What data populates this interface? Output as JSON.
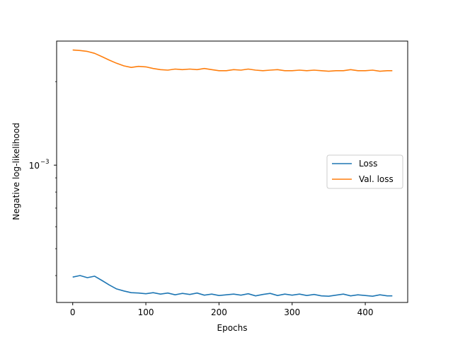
{
  "chart_data": {
    "type": "line",
    "xlabel": "Epochs",
    "ylabel": "Negative log-likelihood",
    "x_ticks": [
      0,
      100,
      200,
      300,
      400
    ],
    "x_tick_labels": [
      "0",
      "100",
      "200",
      "300",
      "400"
    ],
    "xlim": [
      -22,
      458
    ],
    "y_scale": "log",
    "ylim": [
      0.00032,
      0.0028
    ],
    "y_major_ticks": [
      0.001
    ],
    "y_major_tick_labels": [
      "10",
      "−3"
    ],
    "y_minor_ticks": [
      0.0004,
      0.0005,
      0.0006,
      0.0007,
      0.0008,
      0.0009,
      0.002
    ],
    "grid": false,
    "legend": {
      "position": "right",
      "entries": [
        "Loss",
        "Val. loss"
      ]
    },
    "series": [
      {
        "name": "Loss",
        "color": "#1f77b4",
        "x": [
          0,
          10,
          20,
          30,
          40,
          50,
          60,
          70,
          80,
          90,
          100,
          110,
          120,
          130,
          140,
          150,
          160,
          170,
          180,
          190,
          200,
          210,
          220,
          230,
          240,
          250,
          260,
          270,
          280,
          290,
          300,
          310,
          320,
          330,
          340,
          350,
          360,
          370,
          380,
          390,
          400,
          410,
          420,
          430,
          437
        ],
        "y": [
          0.000395,
          0.0004,
          0.000393,
          0.000398,
          0.000384,
          0.00037,
          0.000358,
          0.000352,
          0.000347,
          0.000346,
          0.000344,
          0.000347,
          0.000343,
          0.000346,
          0.000341,
          0.000345,
          0.000342,
          0.000346,
          0.00034,
          0.000343,
          0.000339,
          0.000341,
          0.000343,
          0.00034,
          0.000344,
          0.000338,
          0.000342,
          0.000345,
          0.000339,
          0.000343,
          0.00034,
          0.000343,
          0.000339,
          0.000342,
          0.000338,
          0.000337,
          0.00034,
          0.000343,
          0.000338,
          0.000341,
          0.000339,
          0.000337,
          0.000341,
          0.000338,
          0.000338
        ]
      },
      {
        "name": "Val. loss",
        "color": "#ff7f0e",
        "x": [
          0,
          10,
          20,
          30,
          40,
          50,
          60,
          70,
          80,
          90,
          100,
          110,
          120,
          130,
          140,
          150,
          160,
          170,
          180,
          190,
          200,
          210,
          220,
          230,
          240,
          250,
          260,
          270,
          280,
          290,
          300,
          310,
          320,
          330,
          340,
          350,
          360,
          370,
          380,
          390,
          400,
          410,
          420,
          430,
          437
        ],
        "y": [
          0.0026,
          0.00259,
          0.00257,
          0.00253,
          0.00246,
          0.00239,
          0.00233,
          0.00228,
          0.00225,
          0.00227,
          0.00226,
          0.00223,
          0.00221,
          0.0022,
          0.00222,
          0.00221,
          0.00222,
          0.00221,
          0.00223,
          0.00221,
          0.00219,
          0.00219,
          0.00221,
          0.0022,
          0.00222,
          0.0022,
          0.00219,
          0.0022,
          0.00221,
          0.00219,
          0.00219,
          0.0022,
          0.00219,
          0.0022,
          0.00219,
          0.00218,
          0.00219,
          0.00219,
          0.00221,
          0.00219,
          0.00219,
          0.0022,
          0.00218,
          0.00219,
          0.00219
        ]
      }
    ]
  }
}
